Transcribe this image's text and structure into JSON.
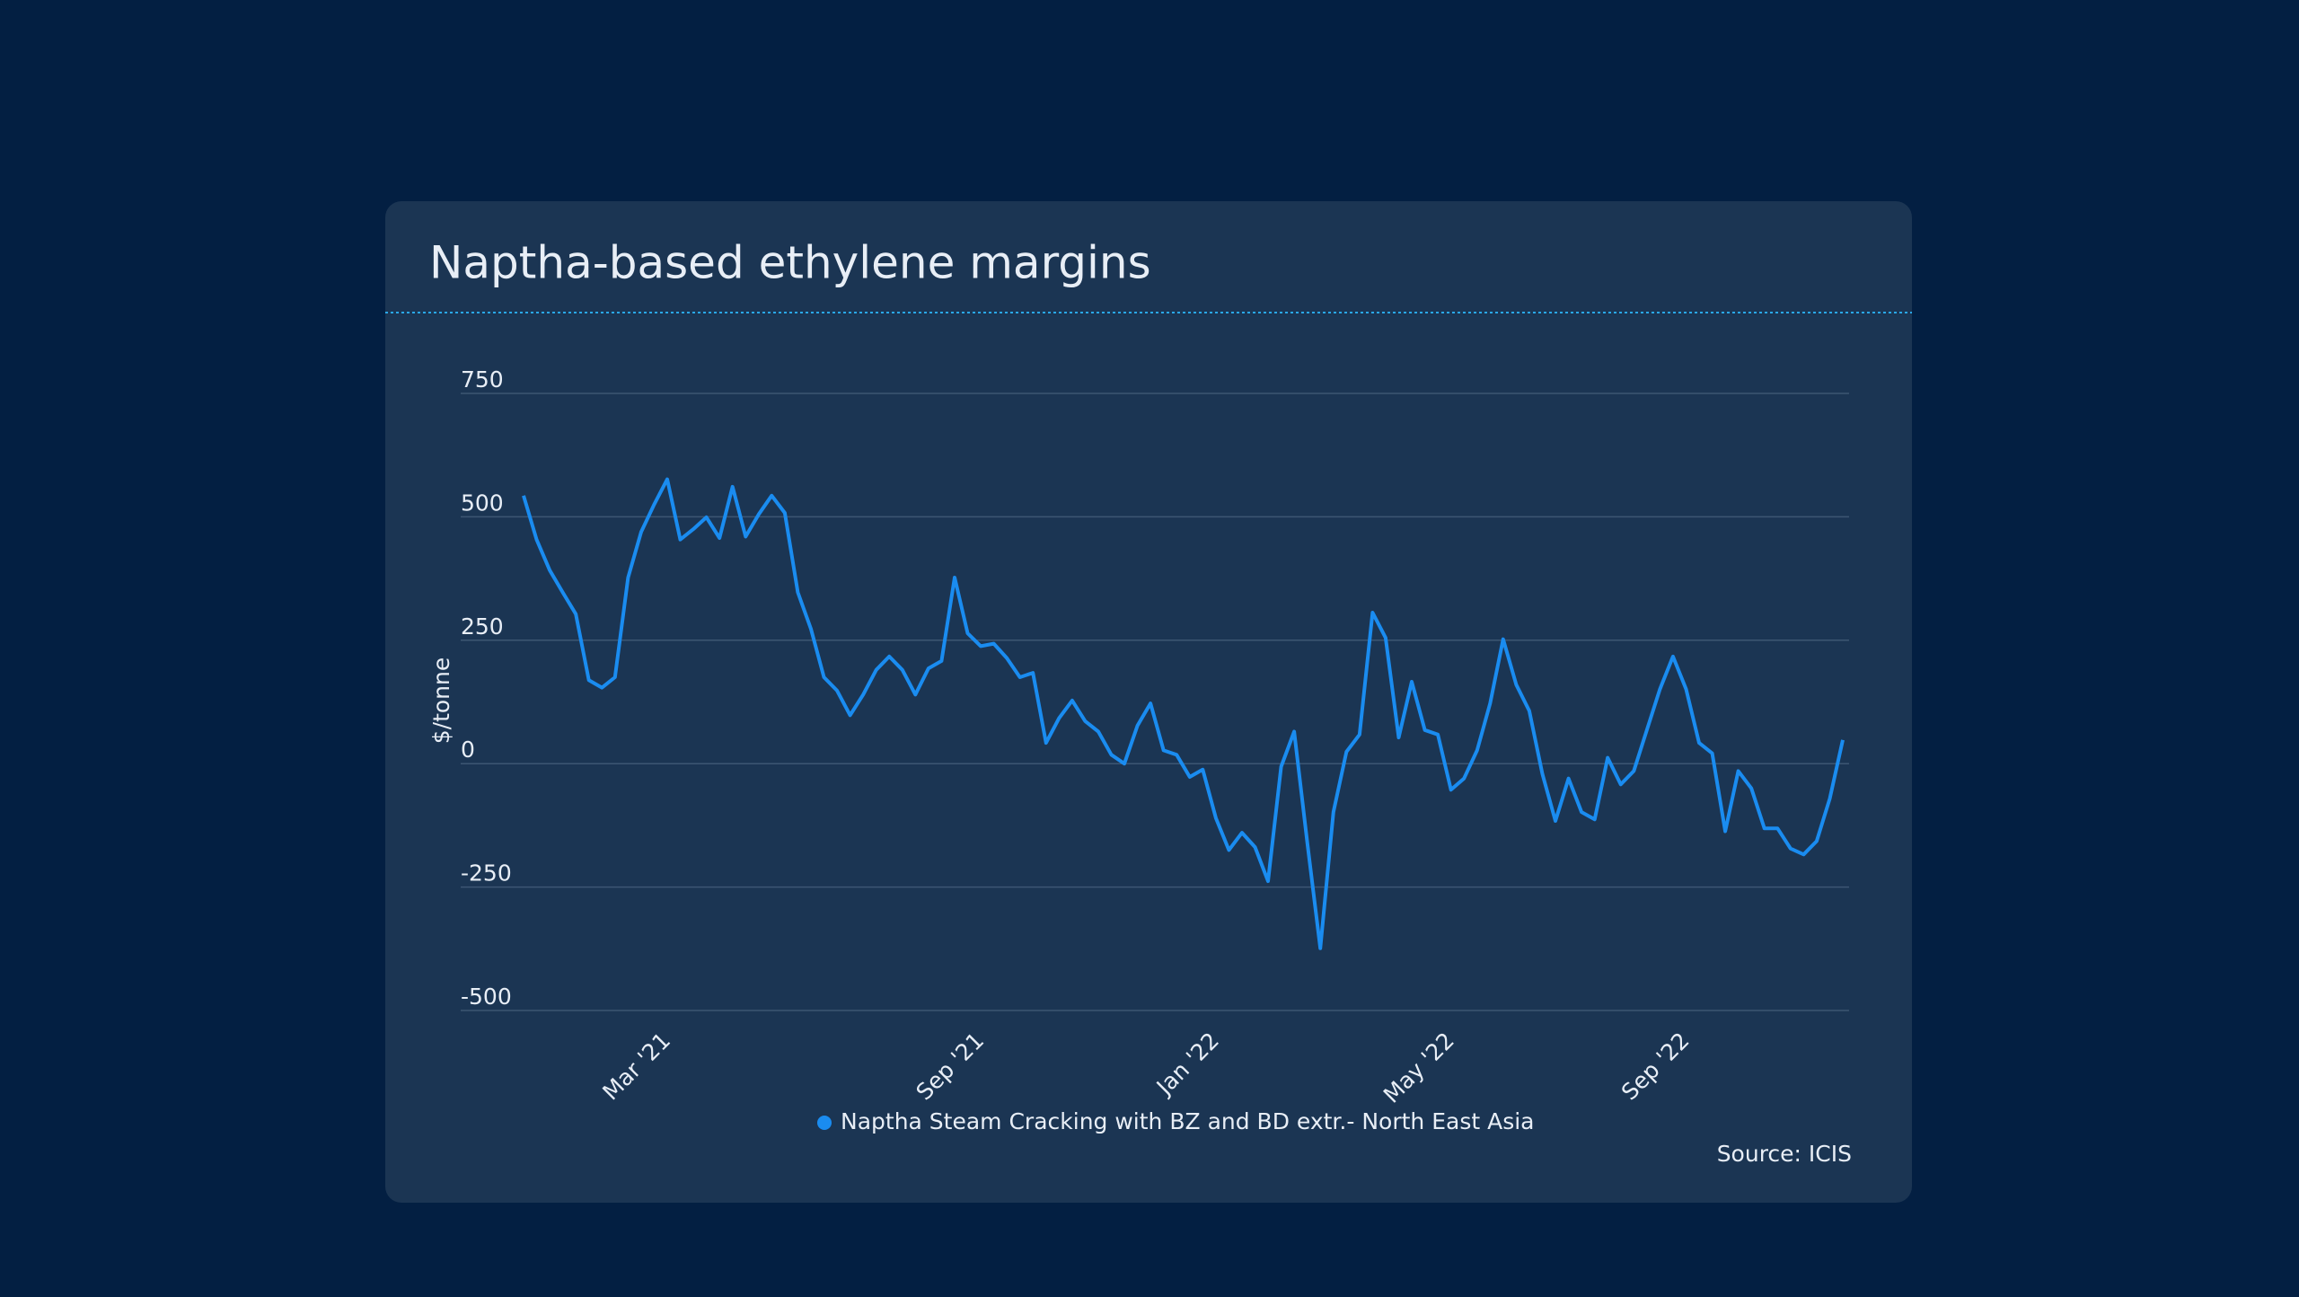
{
  "chart_data": {
    "type": "line",
    "title": "Naptha-based ethylene margins",
    "y_label": "$/tonne",
    "source": "Source: ICIS",
    "categories": [
      null,
      null,
      null,
      null,
      null,
      null,
      null,
      null,
      null,
      null,
      null,
      "Mar '21",
      null,
      null,
      null,
      null,
      null,
      null,
      null,
      null,
      null,
      null,
      null,
      null,
      null,
      null,
      null,
      null,
      null,
      null,
      null,
      null,
      null,
      null,
      null,
      "Sep '21",
      null,
      null,
      null,
      null,
      null,
      null,
      null,
      null,
      null,
      null,
      null,
      null,
      null,
      null,
      null,
      null,
      null,
      "Jan '22",
      null,
      null,
      null,
      null,
      null,
      null,
      null,
      null,
      null,
      null,
      null,
      null,
      null,
      null,
      null,
      null,
      null,
      "May '22",
      null,
      null,
      null,
      null,
      null,
      null,
      null,
      null,
      null,
      null,
      null,
      null,
      null,
      null,
      null,
      null,
      null,
      "Sep '22",
      null,
      null,
      null,
      null,
      null,
      null,
      null,
      null,
      null,
      null,
      null,
      null
    ],
    "series": [
      {
        "name": "Naptha Steam Cracking with BZ and BD extr.- North East Asia",
        "color": "#1a8cf0",
        "values": [
          543,
          454,
          392,
          347,
          303,
          169,
          154,
          175,
          377,
          469,
          525,
          576,
          454,
          475,
          499,
          457,
          561,
          460,
          505,
          543,
          508,
          347,
          273,
          175,
          148,
          98,
          140,
          190,
          217,
          190,
          140,
          193,
          208,
          377,
          264,
          238,
          243,
          214,
          175,
          184,
          42,
          92,
          128,
          86,
          65,
          18,
          0,
          77,
          122,
          27,
          18,
          -27,
          -12,
          -110,
          -175,
          -140,
          -169,
          -238,
          -6,
          65,
          -160,
          -374,
          -98,
          24,
          59,
          306,
          255,
          53,
          166,
          68,
          59,
          -53,
          -30,
          27,
          122,
          252,
          160,
          107,
          -21,
          -116,
          -30,
          -98,
          -113,
          12,
          -42,
          -15,
          68,
          151,
          217,
          151,
          42,
          21,
          -137,
          -15,
          -50,
          -131,
          -131,
          -172,
          -184,
          -157,
          -71,
          48
        ]
      }
    ],
    "ylim": [
      -500,
      750
    ],
    "yticks": [
      -500,
      -250,
      0,
      250,
      500,
      750
    ],
    "grid": true
  }
}
